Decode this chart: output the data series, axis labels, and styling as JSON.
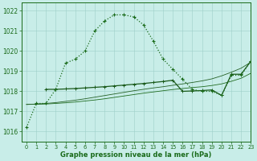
{
  "title": "Graphe pression niveau de la mer (hPa)",
  "background_color": "#c8ede8",
  "grid_color": "#9ecfc8",
  "xlim": [
    -0.5,
    23
  ],
  "ylim": [
    1015.5,
    1022.4
  ],
  "yticks": [
    1016,
    1017,
    1018,
    1019,
    1020,
    1021,
    1022
  ],
  "xticks": [
    0,
    1,
    2,
    3,
    4,
    5,
    6,
    7,
    8,
    9,
    10,
    11,
    12,
    13,
    14,
    15,
    16,
    17,
    18,
    19,
    20,
    21,
    22,
    23
  ],
  "series_dotted": {
    "x": [
      0,
      1,
      2,
      3,
      4,
      5,
      6,
      7,
      8,
      9,
      10,
      11,
      12,
      13,
      14,
      15,
      16,
      17,
      18,
      19,
      20,
      21,
      22,
      23
    ],
    "y": [
      1016.2,
      1017.4,
      1017.4,
      1018.1,
      1019.4,
      1019.6,
      1020.0,
      1021.0,
      1021.5,
      1021.8,
      1021.8,
      1021.7,
      1021.3,
      1020.5,
      1019.6,
      1019.1,
      1018.6,
      1018.1,
      1018.0,
      1018.0,
      1017.8,
      1018.8,
      1018.8,
      1019.5
    ],
    "color": "#1a6b1a",
    "linewidth": 0.9,
    "linestyle": "dotted"
  },
  "series_thin1": {
    "x": [
      0,
      1,
      2,
      3,
      4,
      5,
      6,
      7,
      8,
      9,
      10,
      11,
      12,
      13,
      14,
      15,
      16,
      17,
      18,
      19,
      20,
      21,
      22,
      23
    ],
    "y": [
      1017.35,
      1017.36,
      1017.37,
      1017.4,
      1017.43,
      1017.47,
      1017.52,
      1017.57,
      1017.63,
      1017.7,
      1017.77,
      1017.84,
      1017.91,
      1017.97,
      1018.03,
      1018.09,
      1018.14,
      1018.19,
      1018.23,
      1018.29,
      1018.37,
      1018.5,
      1018.65,
      1018.9
    ],
    "color": "#1f6b1f",
    "linewidth": 0.6
  },
  "series_thin2": {
    "x": [
      0,
      1,
      2,
      3,
      4,
      5,
      6,
      7,
      8,
      9,
      10,
      11,
      12,
      13,
      14,
      15,
      16,
      17,
      18,
      19,
      20,
      21,
      22,
      23
    ],
    "y": [
      1017.35,
      1017.37,
      1017.4,
      1017.44,
      1017.5,
      1017.56,
      1017.63,
      1017.71,
      1017.79,
      1017.87,
      1017.95,
      1018.03,
      1018.1,
      1018.17,
      1018.23,
      1018.3,
      1018.37,
      1018.44,
      1018.52,
      1018.62,
      1018.77,
      1018.95,
      1019.15,
      1019.45
    ],
    "color": "#246024",
    "linewidth": 0.6
  },
  "series_solid": {
    "x": [
      2,
      3,
      4,
      5,
      6,
      7,
      8,
      9,
      10,
      11,
      12,
      13,
      14,
      15,
      16,
      17,
      18,
      19,
      20,
      21,
      22,
      23
    ],
    "y": [
      1018.1,
      1018.1,
      1018.12,
      1018.14,
      1018.17,
      1018.2,
      1018.23,
      1018.27,
      1018.31,
      1018.35,
      1018.39,
      1018.44,
      1018.49,
      1018.55,
      1018.0,
      1018.02,
      1018.04,
      1018.07,
      1017.8,
      1018.85,
      1018.85,
      1019.5
    ],
    "color": "#1a5a1a",
    "linewidth": 0.9,
    "linestyle": "solid"
  }
}
